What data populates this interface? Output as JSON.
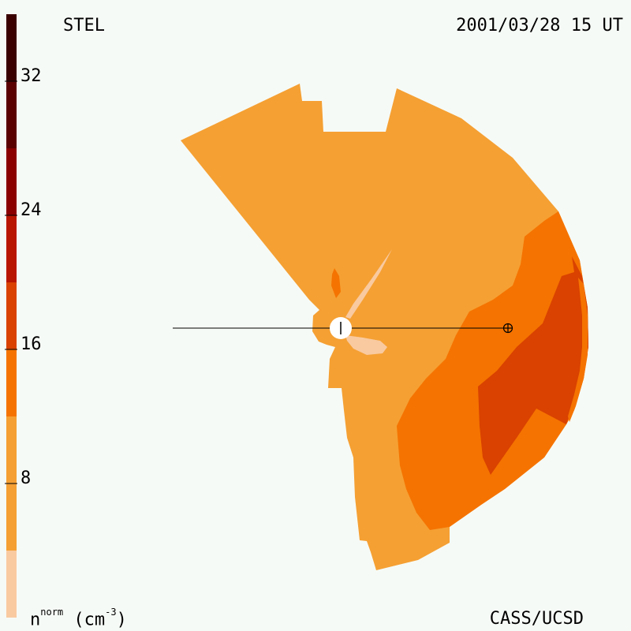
{
  "header": {
    "title": "STEL",
    "timestamp": "2001/03/28 15 UT"
  },
  "footer": {
    "credit": "CASS/UCSD",
    "unit_base": "n",
    "unit_sup": "norm",
    "unit_rest": "(cm",
    "unit_exp": "-3",
    "unit_close": ")"
  },
  "colors": {
    "background": "#f6faf6",
    "level_1": "#f9caa0",
    "level_2": "#f5a033",
    "level_3": "#f57300",
    "level_4": "#d94200",
    "level_5": "#b81600",
    "level_6": "#8a0000",
    "level_7": "#5a0000",
    "level_8": "#3a0000",
    "level_9": "#1a0000"
  },
  "chart_data": {
    "type": "heatmap",
    "title": "STEL",
    "colorbar": {
      "label": "n^norm (cm^-3)",
      "range": [
        0,
        36
      ],
      "ticks": [
        {
          "value": 8,
          "label": "8"
        },
        {
          "value": 16,
          "label": "16"
        },
        {
          "value": 24,
          "label": "24"
        },
        {
          "value": 32,
          "label": "32"
        }
      ],
      "bands": [
        {
          "from": 0,
          "to": 4,
          "color": "#f9caa0"
        },
        {
          "from": 4,
          "to": 12,
          "color": "#f5a033"
        },
        {
          "from": 12,
          "to": 16,
          "color": "#f57300"
        },
        {
          "from": 16,
          "to": 20,
          "color": "#d94200"
        },
        {
          "from": 20,
          "to": 24,
          "color": "#b81600"
        },
        {
          "from": 24,
          "to": 28,
          "color": "#8a0000"
        },
        {
          "from": 28,
          "to": 32,
          "color": "#5a0000"
        },
        {
          "from": 32,
          "to": 36,
          "color": "#3a0000"
        }
      ]
    },
    "markers": {
      "sun": "white disk at center",
      "earth": "circle-plus marker on the Sun–Earth line"
    }
  }
}
